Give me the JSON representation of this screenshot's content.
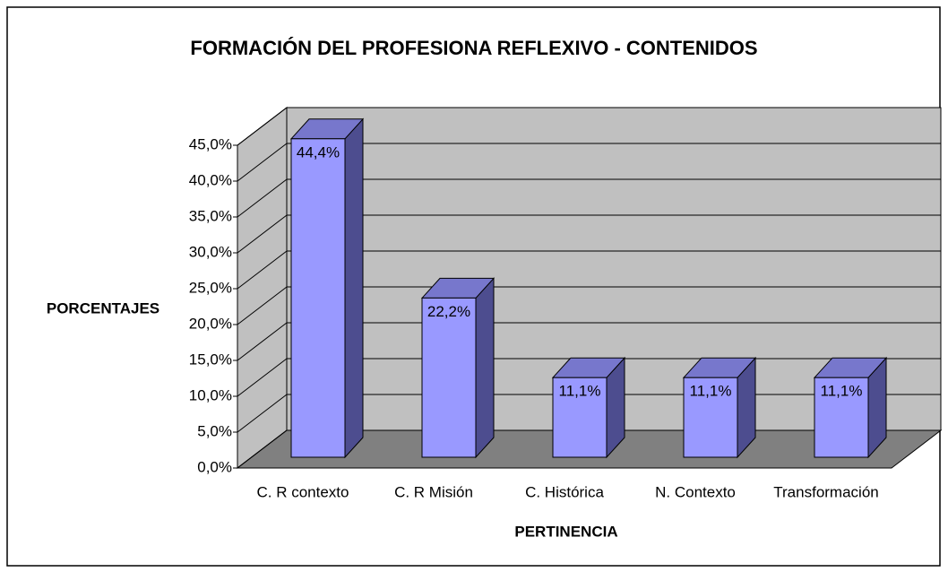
{
  "chart_data": {
    "type": "bar3d",
    "title": "FORMACIÓN DEL PROFESIONA REFLEXIVO - CONTENIDOS",
    "x_label": "PERTINENCIA",
    "y_label": "PORCENTAJES",
    "categories": [
      "C. R contexto",
      "C. R Misión",
      "C. Histórica",
      "N. Contexto",
      "Transformación"
    ],
    "values": [
      44.4,
      22.2,
      11.1,
      11.1,
      11.1
    ],
    "value_labels": [
      "44,4%",
      "22,2%",
      "11,1%",
      "11,1%",
      "11,1%"
    ],
    "color": "#9999ff",
    "ylim": [
      0,
      45
    ],
    "yticks": [
      {
        "value": 0,
        "label": "0,0%"
      },
      {
        "value": 5,
        "label": "5,0%"
      },
      {
        "value": 10,
        "label": "10,0%"
      },
      {
        "value": 15,
        "label": "15,0%"
      },
      {
        "value": 20,
        "label": "20,0%"
      },
      {
        "value": 25,
        "label": "25,0%"
      },
      {
        "value": 30,
        "label": "30,0%"
      },
      {
        "value": 35,
        "label": "35,0%"
      },
      {
        "value": 40,
        "label": "40,0%"
      },
      {
        "value": 45,
        "label": "45,0%"
      }
    ],
    "grid": true
  }
}
